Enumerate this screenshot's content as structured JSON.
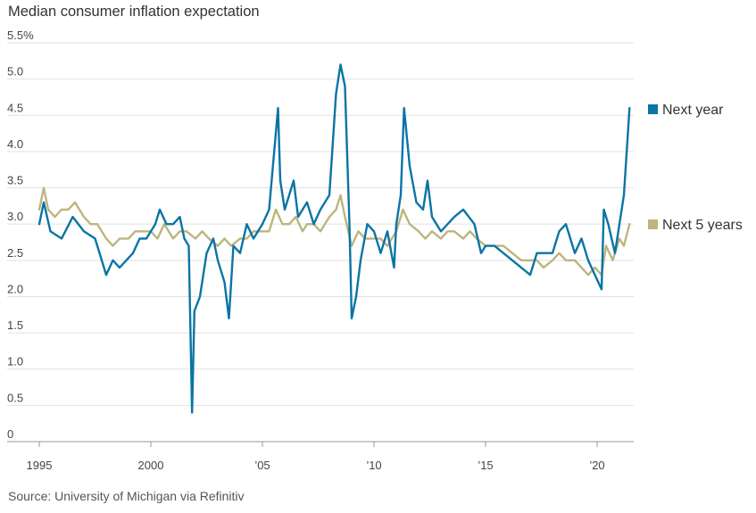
{
  "title": "Median consumer inflation expectation",
  "source": "Source: University of Michigan via Refinitiv",
  "chart_data": {
    "type": "line",
    "title": "Median consumer inflation expectation",
    "ylim": [
      0,
      5.5
    ],
    "yticks": [
      {
        "value": 0,
        "label": "0"
      },
      {
        "value": 0.5,
        "label": "0.5"
      },
      {
        "value": 1.0,
        "label": "1.0"
      },
      {
        "value": 1.5,
        "label": "1.5"
      },
      {
        "value": 2.0,
        "label": "2.0"
      },
      {
        "value": 2.5,
        "label": "2.5"
      },
      {
        "value": 3.0,
        "label": "3.0"
      },
      {
        "value": 3.5,
        "label": "3.5"
      },
      {
        "value": 4.0,
        "label": "4.0"
      },
      {
        "value": 4.5,
        "label": "4.5"
      },
      {
        "value": 5.0,
        "label": "5.0"
      },
      {
        "value": 5.5,
        "label": "5.5%"
      }
    ],
    "xlim": [
      1994.0,
      2021.9
    ],
    "xticks": [
      {
        "value": 1995,
        "label": "1995"
      },
      {
        "value": 2000,
        "label": "2000"
      },
      {
        "value": 2005,
        "label": "’05"
      },
      {
        "value": 2010,
        "label": "’10"
      },
      {
        "value": 2015,
        "label": "’15"
      },
      {
        "value": 2020,
        "label": "’20"
      }
    ],
    "grid": "horizontal",
    "legend": "right",
    "series": [
      {
        "name": "Next year",
        "color": "#0a74a6",
        "points": [
          [
            1995.0,
            3.0
          ],
          [
            1995.2,
            3.3
          ],
          [
            1995.5,
            2.9
          ],
          [
            1996.0,
            2.8
          ],
          [
            1996.5,
            3.1
          ],
          [
            1997.0,
            2.9
          ],
          [
            1997.5,
            2.8
          ],
          [
            1998.0,
            2.3
          ],
          [
            1998.3,
            2.5
          ],
          [
            1998.6,
            2.4
          ],
          [
            1998.9,
            2.5
          ],
          [
            1999.2,
            2.6
          ],
          [
            1999.5,
            2.8
          ],
          [
            1999.8,
            2.8
          ],
          [
            2000.2,
            3.0
          ],
          [
            2000.4,
            3.2
          ],
          [
            2000.7,
            3.0
          ],
          [
            2001.0,
            3.0
          ],
          [
            2001.3,
            3.1
          ],
          [
            2001.5,
            2.8
          ],
          [
            2001.7,
            2.7
          ],
          [
            2001.85,
            0.4
          ],
          [
            2001.95,
            1.8
          ],
          [
            2002.2,
            2.0
          ],
          [
            2002.5,
            2.6
          ],
          [
            2002.8,
            2.8
          ],
          [
            2003.0,
            2.5
          ],
          [
            2003.3,
            2.2
          ],
          [
            2003.5,
            1.7
          ],
          [
            2003.7,
            2.7
          ],
          [
            2004.0,
            2.6
          ],
          [
            2004.3,
            3.0
          ],
          [
            2004.6,
            2.8
          ],
          [
            2005.0,
            3.0
          ],
          [
            2005.3,
            3.2
          ],
          [
            2005.7,
            4.6
          ],
          [
            2005.8,
            3.6
          ],
          [
            2006.0,
            3.2
          ],
          [
            2006.2,
            3.4
          ],
          [
            2006.4,
            3.6
          ],
          [
            2006.6,
            3.1
          ],
          [
            2006.8,
            3.2
          ],
          [
            2007.0,
            3.3
          ],
          [
            2007.3,
            3.0
          ],
          [
            2007.6,
            3.2
          ],
          [
            2008.0,
            3.4
          ],
          [
            2008.3,
            4.8
          ],
          [
            2008.5,
            5.2
          ],
          [
            2008.7,
            4.9
          ],
          [
            2008.9,
            3.0
          ],
          [
            2009.0,
            1.7
          ],
          [
            2009.2,
            2.0
          ],
          [
            2009.4,
            2.5
          ],
          [
            2009.7,
            3.0
          ],
          [
            2010.0,
            2.9
          ],
          [
            2010.3,
            2.6
          ],
          [
            2010.6,
            2.9
          ],
          [
            2010.9,
            2.4
          ],
          [
            2011.0,
            3.0
          ],
          [
            2011.2,
            3.4
          ],
          [
            2011.35,
            4.6
          ],
          [
            2011.6,
            3.8
          ],
          [
            2011.9,
            3.3
          ],
          [
            2012.2,
            3.2
          ],
          [
            2012.4,
            3.6
          ],
          [
            2012.6,
            3.1
          ],
          [
            2013.0,
            2.9
          ],
          [
            2013.3,
            3.0
          ],
          [
            2013.6,
            3.1
          ],
          [
            2014.0,
            3.2
          ],
          [
            2014.5,
            3.0
          ],
          [
            2014.8,
            2.6
          ],
          [
            2015.0,
            2.7
          ],
          [
            2015.4,
            2.7
          ],
          [
            2015.8,
            2.6
          ],
          [
            2016.2,
            2.5
          ],
          [
            2016.6,
            2.4
          ],
          [
            2017.0,
            2.3
          ],
          [
            2017.3,
            2.6
          ],
          [
            2017.6,
            2.6
          ],
          [
            2018.0,
            2.6
          ],
          [
            2018.3,
            2.9
          ],
          [
            2018.6,
            3.0
          ],
          [
            2019.0,
            2.6
          ],
          [
            2019.3,
            2.8
          ],
          [
            2019.6,
            2.5
          ],
          [
            2019.9,
            2.3
          ],
          [
            2020.2,
            2.1
          ],
          [
            2020.3,
            3.2
          ],
          [
            2020.5,
            3.0
          ],
          [
            2020.8,
            2.6
          ],
          [
            2021.0,
            3.0
          ],
          [
            2021.2,
            3.4
          ],
          [
            2021.45,
            4.6
          ]
        ]
      },
      {
        "name": "Next 5 years",
        "color": "#bdb57e",
        "points": [
          [
            1995.0,
            3.2
          ],
          [
            1995.2,
            3.5
          ],
          [
            1995.4,
            3.2
          ],
          [
            1995.7,
            3.1
          ],
          [
            1996.0,
            3.2
          ],
          [
            1996.3,
            3.2
          ],
          [
            1996.6,
            3.3
          ],
          [
            1997.0,
            3.1
          ],
          [
            1997.3,
            3.0
          ],
          [
            1997.6,
            3.0
          ],
          [
            1998.0,
            2.8
          ],
          [
            1998.3,
            2.7
          ],
          [
            1998.6,
            2.8
          ],
          [
            1999.0,
            2.8
          ],
          [
            1999.3,
            2.9
          ],
          [
            1999.6,
            2.9
          ],
          [
            2000.0,
            2.9
          ],
          [
            2000.3,
            2.8
          ],
          [
            2000.6,
            3.0
          ],
          [
            2001.0,
            2.8
          ],
          [
            2001.3,
            2.9
          ],
          [
            2001.6,
            2.9
          ],
          [
            2002.0,
            2.8
          ],
          [
            2002.3,
            2.9
          ],
          [
            2002.6,
            2.8
          ],
          [
            2003.0,
            2.7
          ],
          [
            2003.3,
            2.8
          ],
          [
            2003.6,
            2.7
          ],
          [
            2004.0,
            2.8
          ],
          [
            2004.3,
            2.8
          ],
          [
            2004.6,
            2.9
          ],
          [
            2005.0,
            2.9
          ],
          [
            2005.3,
            2.9
          ],
          [
            2005.6,
            3.2
          ],
          [
            2005.9,
            3.0
          ],
          [
            2006.2,
            3.0
          ],
          [
            2006.5,
            3.1
          ],
          [
            2006.8,
            2.9
          ],
          [
            2007.0,
            3.0
          ],
          [
            2007.3,
            3.0
          ],
          [
            2007.6,
            2.9
          ],
          [
            2008.0,
            3.1
          ],
          [
            2008.3,
            3.2
          ],
          [
            2008.5,
            3.4
          ],
          [
            2008.7,
            3.1
          ],
          [
            2009.0,
            2.7
          ],
          [
            2009.3,
            2.9
          ],
          [
            2009.6,
            2.8
          ],
          [
            2010.0,
            2.8
          ],
          [
            2010.3,
            2.8
          ],
          [
            2010.6,
            2.7
          ],
          [
            2011.0,
            2.9
          ],
          [
            2011.3,
            3.2
          ],
          [
            2011.6,
            3.0
          ],
          [
            2012.0,
            2.9
          ],
          [
            2012.3,
            2.8
          ],
          [
            2012.6,
            2.9
          ],
          [
            2013.0,
            2.8
          ],
          [
            2013.3,
            2.9
          ],
          [
            2013.6,
            2.9
          ],
          [
            2014.0,
            2.8
          ],
          [
            2014.3,
            2.9
          ],
          [
            2014.6,
            2.8
          ],
          [
            2015.0,
            2.7
          ],
          [
            2015.4,
            2.7
          ],
          [
            2015.8,
            2.7
          ],
          [
            2016.2,
            2.6
          ],
          [
            2016.6,
            2.5
          ],
          [
            2017.0,
            2.5
          ],
          [
            2017.3,
            2.5
          ],
          [
            2017.6,
            2.4
          ],
          [
            2018.0,
            2.5
          ],
          [
            2018.3,
            2.6
          ],
          [
            2018.6,
            2.5
          ],
          [
            2019.0,
            2.5
          ],
          [
            2019.3,
            2.4
          ],
          [
            2019.6,
            2.3
          ],
          [
            2019.9,
            2.4
          ],
          [
            2020.2,
            2.3
          ],
          [
            2020.4,
            2.7
          ],
          [
            2020.7,
            2.5
          ],
          [
            2021.0,
            2.8
          ],
          [
            2021.2,
            2.7
          ],
          [
            2021.45,
            3.0
          ]
        ]
      }
    ]
  }
}
